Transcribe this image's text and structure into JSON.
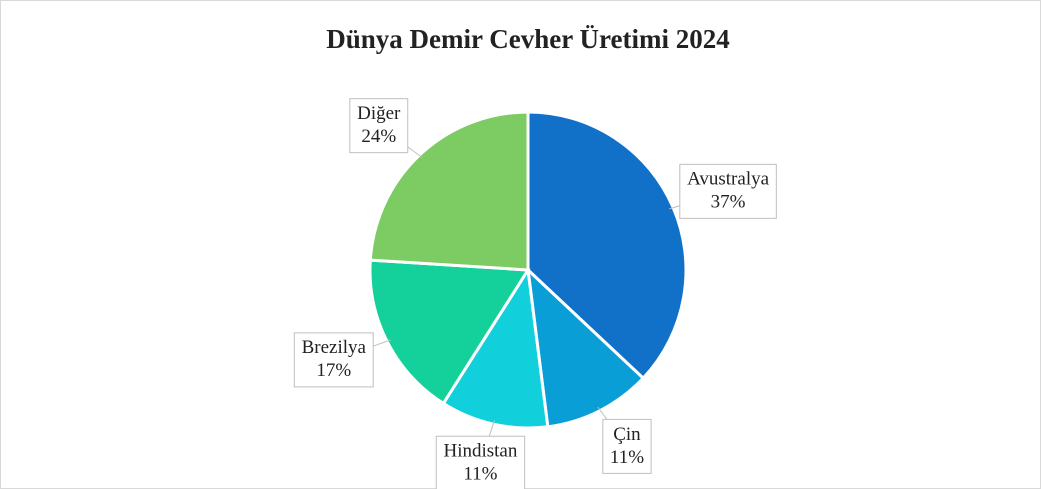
{
  "chart_data": {
    "type": "pie",
    "title": "Dünya Demir Cevher Üretimi 2024",
    "categories": [
      "Avustralya",
      "Çin",
      "Hindistan",
      "Brezilya",
      "Diğer"
    ],
    "values": [
      37,
      11,
      11,
      17,
      24
    ],
    "value_labels": [
      "37%",
      "11%",
      "11%",
      "17%",
      "24%"
    ],
    "colors": [
      "#1170c8",
      "#0a9ed6",
      "#12cfdc",
      "#14d09a",
      "#7dcb63"
    ]
  }
}
